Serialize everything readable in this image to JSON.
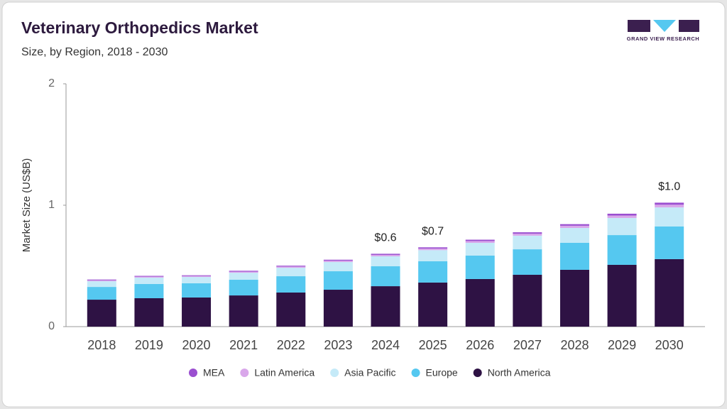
{
  "chart_data": {
    "type": "stacked_bar",
    "title": "Veterinary Orthopedics Market",
    "subtitle": "Size, by Region, 2018 - 2030",
    "logo_text": "GRAND VIEW RESEARCH",
    "y_label": "Market Size (US$B)",
    "categories": [
      "2018",
      "2019",
      "2020",
      "2021",
      "2022",
      "2023",
      "2024",
      "2025",
      "2026",
      "2027",
      "2028",
      "2029",
      "2030"
    ],
    "ylim": [
      0,
      2
    ],
    "yticks": [
      0,
      1,
      2
    ],
    "grid": false,
    "series": [
      {
        "name": "North America",
        "color": "#2e1244",
        "values": [
          0.222,
          0.234,
          0.24,
          0.257,
          0.281,
          0.304,
          0.333,
          0.363,
          0.392,
          0.427,
          0.468,
          0.509,
          0.556
        ]
      },
      {
        "name": "Europe",
        "color": "#55c8f0",
        "values": [
          0.105,
          0.117,
          0.117,
          0.129,
          0.134,
          0.152,
          0.164,
          0.175,
          0.193,
          0.21,
          0.222,
          0.245,
          0.269
        ]
      },
      {
        "name": "Asia Pacific",
        "color": "#c5eaf8",
        "values": [
          0.047,
          0.053,
          0.052,
          0.058,
          0.07,
          0.076,
          0.082,
          0.092,
          0.105,
          0.112,
          0.123,
          0.141,
          0.157
        ]
      },
      {
        "name": "Latin America",
        "color": "#d9a7ea",
        "values": [
          0.008,
          0.008,
          0.008,
          0.009,
          0.01,
          0.011,
          0.012,
          0.013,
          0.015,
          0.016,
          0.018,
          0.02,
          0.022
        ]
      },
      {
        "name": "MEA",
        "color": "#9b4fd0",
        "values": [
          0.006,
          0.006,
          0.006,
          0.007,
          0.007,
          0.008,
          0.009,
          0.01,
          0.011,
          0.012,
          0.013,
          0.015,
          0.017
        ]
      }
    ],
    "totals": [
      null,
      null,
      null,
      null,
      null,
      null,
      0.6,
      0.653,
      null,
      null,
      null,
      null,
      1.021
    ],
    "total_labels": [
      null,
      null,
      null,
      null,
      null,
      null,
      "$0.6",
      "$0.7",
      null,
      null,
      null,
      null,
      "$1.0"
    ]
  }
}
